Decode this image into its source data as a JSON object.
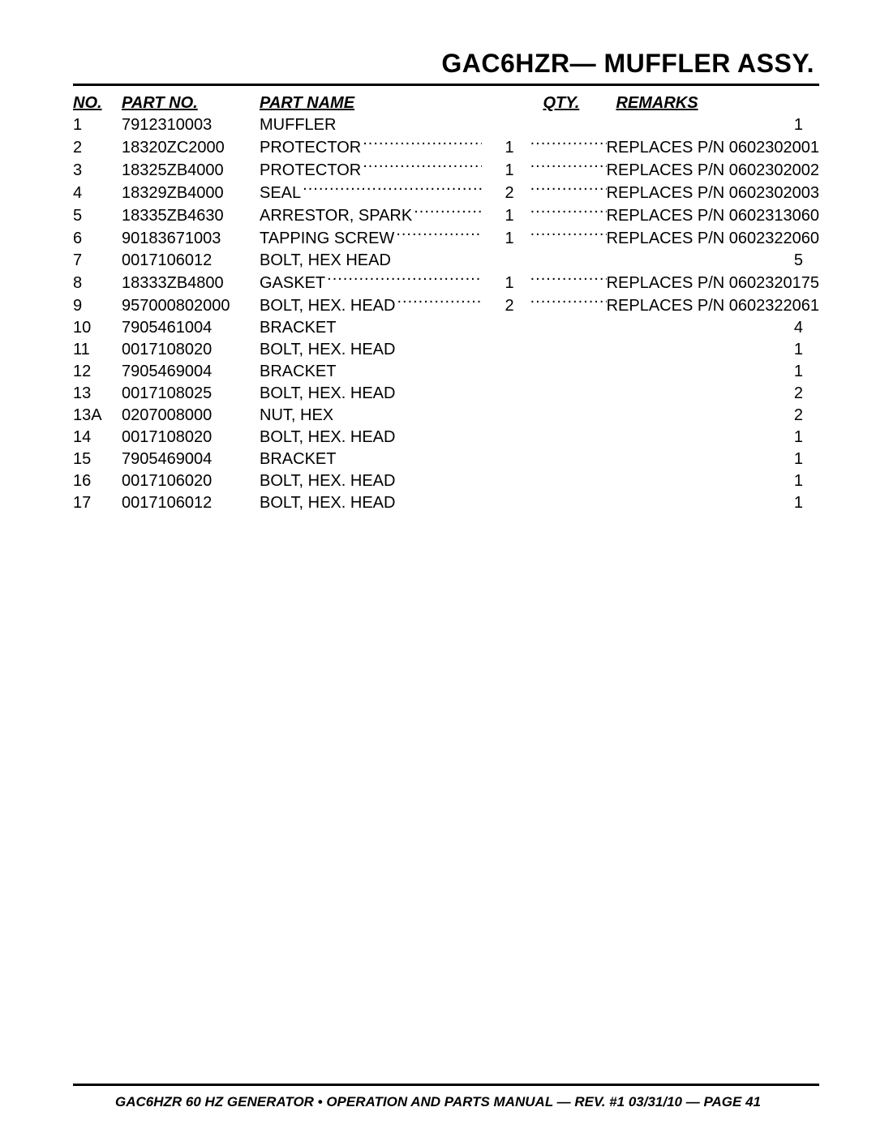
{
  "title": "GAC6HZR— MUFFLER ASSY.",
  "columns": {
    "no": "NO.",
    "partNo": "PART NO.",
    "partName": "PART NAME",
    "qty": "QTY.",
    "remarks": "REMARKS"
  },
  "rows": [
    {
      "no": "1",
      "partNo": "7912310003",
      "name": "MUFFLER",
      "qty": "1",
      "remarks": ""
    },
    {
      "no": "2",
      "partNo": "18320ZC2000",
      "name": "PROTECTOR",
      "qty": "1",
      "remarks": "REPLACES P/N 0602302001"
    },
    {
      "no": "3",
      "partNo": "18325ZB4000",
      "name": "PROTECTOR",
      "qty": "1",
      "remarks": "REPLACES P/N 0602302002"
    },
    {
      "no": "4",
      "partNo": "18329ZB4000",
      "name": "SEAL",
      "qty": "2",
      "remarks": "REPLACES P/N 0602302003"
    },
    {
      "no": "5",
      "partNo": "18335ZB4630",
      "name": "ARRESTOR, SPARK",
      "qty": "1",
      "remarks": "REPLACES P/N 0602313060"
    },
    {
      "no": "6",
      "partNo": "90183671003",
      "name": "TAPPING SCREW",
      "qty": "1",
      "remarks": "REPLACES P/N 0602322060"
    },
    {
      "no": "7",
      "partNo": "0017106012",
      "name": "BOLT, HEX HEAD",
      "qty": "5",
      "remarks": ""
    },
    {
      "no": "8",
      "partNo": "18333ZB4800",
      "name": "GASKET",
      "qty": "1",
      "remarks": "REPLACES P/N 0602320175"
    },
    {
      "no": "9",
      "partNo": "957000802000",
      "name": "BOLT, HEX. HEAD",
      "qty": "2",
      "remarks": "REPLACES P/N 0602322061"
    },
    {
      "no": "10",
      "partNo": "7905461004",
      "name": "BRACKET",
      "qty": "4",
      "remarks": ""
    },
    {
      "no": "11",
      "partNo": "0017108020",
      "name": "BOLT, HEX. HEAD",
      "qty": "1",
      "remarks": ""
    },
    {
      "no": "12",
      "partNo": "7905469004",
      "name": "BRACKET",
      "qty": "1",
      "remarks": ""
    },
    {
      "no": "13",
      "partNo": "0017108025",
      "name": "BOLT, HEX. HEAD",
      "qty": "2",
      "remarks": ""
    },
    {
      "no": "13A",
      "partNo": "0207008000",
      "name": "NUT, HEX",
      "qty": "2",
      "remarks": ""
    },
    {
      "no": "14",
      "partNo": "0017108020",
      "name": "BOLT, HEX. HEAD",
      "qty": "1",
      "remarks": ""
    },
    {
      "no": "15",
      "partNo": "7905469004",
      "name": "BRACKET",
      "qty": "1",
      "remarks": ""
    },
    {
      "no": "16",
      "partNo": "0017106020",
      "name": "BOLT, HEX. HEAD",
      "qty": "1",
      "remarks": ""
    },
    {
      "no": "17",
      "partNo": "0017106012",
      "name": "BOLT, HEX. HEAD",
      "qty": "1",
      "remarks": ""
    }
  ],
  "footer": "GAC6HZR 60 HZ GENERATOR • OPERATION AND PARTS MANUAL — REV. #1 03/31/10 — PAGE 41"
}
